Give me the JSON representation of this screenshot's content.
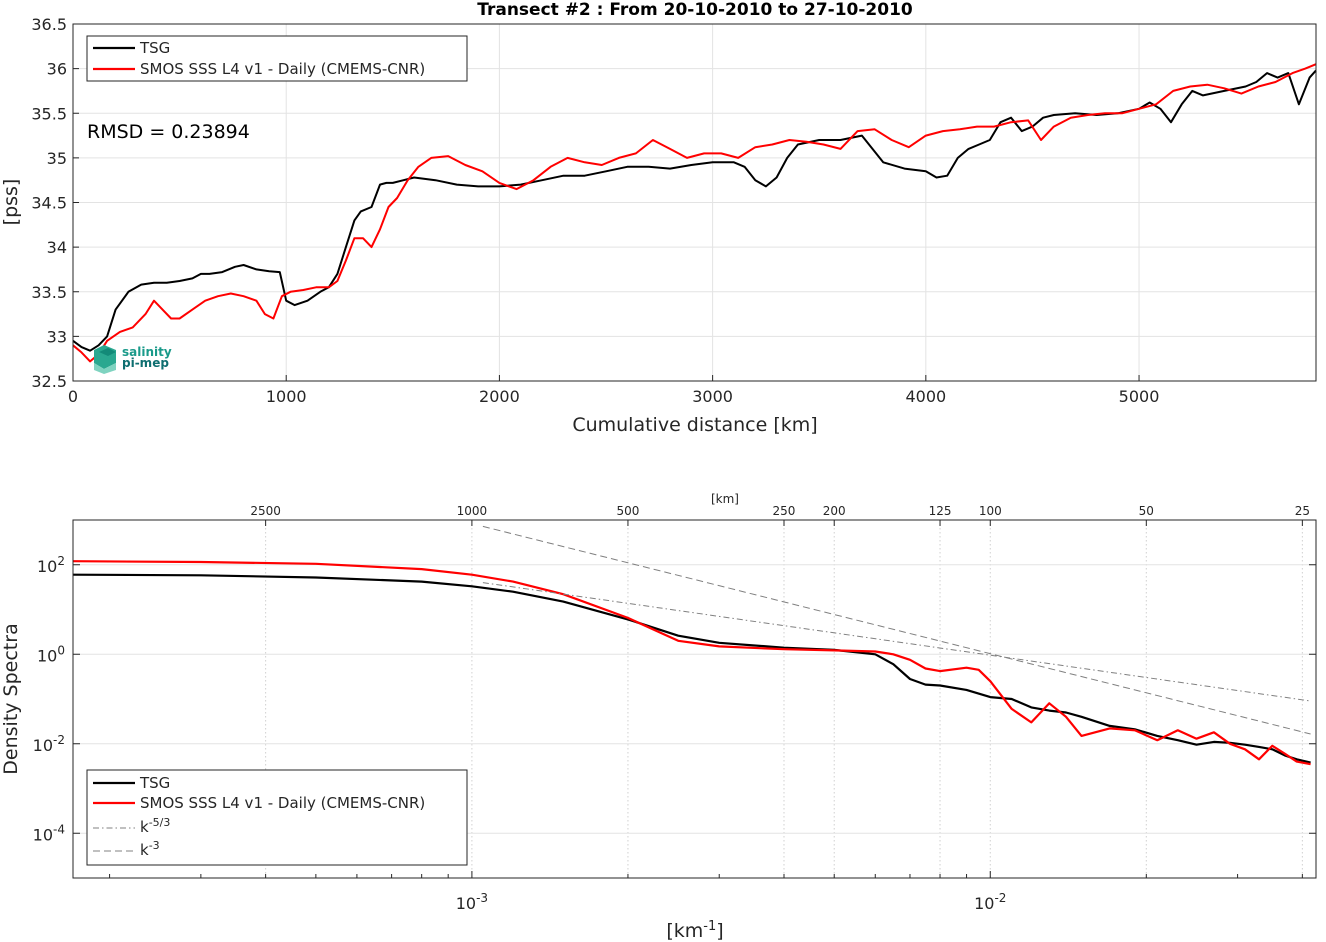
{
  "colors": {
    "tsg": "#000000",
    "smos": "#ff0000",
    "reference": "#808080",
    "logo": "#1a9a8a"
  },
  "annotation": {
    "rmsd": "RMSD = 0.23894"
  },
  "logo": {
    "line1": "salinity",
    "line2": "pi-mep"
  },
  "chart_data": [
    {
      "type": "line",
      "title": "Transect #2 : From 20-10-2010 to 27-10-2010",
      "xlabel": "Cumulative distance [km]",
      "ylabel": "[pss]",
      "xlim": [
        0,
        5830
      ],
      "ylim": [
        32.5,
        36.5
      ],
      "xticks": [
        0,
        1000,
        2000,
        3000,
        4000,
        5000
      ],
      "yticks": [
        32.5,
        33,
        33.5,
        34,
        34.5,
        35,
        35.5,
        36,
        36.5
      ],
      "grid": true,
      "legend_position": "top-left",
      "series": [
        {
          "name": "TSG",
          "x": [
            0,
            40,
            80,
            120,
            160,
            200,
            260,
            320,
            380,
            440,
            500,
            560,
            600,
            640,
            700,
            760,
            800,
            860,
            920,
            970,
            1000,
            1040,
            1100,
            1160,
            1200,
            1240,
            1280,
            1320,
            1350,
            1400,
            1440,
            1470,
            1500,
            1550,
            1600,
            1700,
            1800,
            1900,
            2000,
            2100,
            2200,
            2300,
            2400,
            2500,
            2600,
            2700,
            2800,
            2900,
            3000,
            3100,
            3150,
            3200,
            3250,
            3300,
            3350,
            3400,
            3500,
            3600,
            3700,
            3800,
            3900,
            4000,
            4050,
            4100,
            4150,
            4200,
            4250,
            4300,
            4350,
            4400,
            4450,
            4500,
            4550,
            4600,
            4700,
            4800,
            4900,
            5000,
            5050,
            5100,
            5150,
            5200,
            5250,
            5300,
            5400,
            5500,
            5550,
            5600,
            5650,
            5700,
            5750,
            5800,
            5830
          ],
          "values": [
            32.95,
            32.88,
            32.84,
            32.9,
            33.0,
            33.3,
            33.5,
            33.58,
            33.6,
            33.6,
            33.62,
            33.65,
            33.7,
            33.7,
            33.72,
            33.78,
            33.8,
            33.75,
            33.73,
            33.72,
            33.4,
            33.35,
            33.4,
            33.5,
            33.55,
            33.7,
            34.0,
            34.3,
            34.4,
            34.45,
            34.7,
            34.72,
            34.72,
            34.75,
            34.78,
            34.75,
            34.7,
            34.68,
            34.68,
            34.7,
            34.75,
            34.8,
            34.8,
            34.85,
            34.9,
            34.9,
            34.88,
            34.92,
            34.95,
            34.95,
            34.9,
            34.75,
            34.68,
            34.78,
            35.0,
            35.15,
            35.2,
            35.2,
            35.25,
            34.95,
            34.88,
            34.85,
            34.78,
            34.8,
            35.0,
            35.1,
            35.15,
            35.2,
            35.4,
            35.45,
            35.3,
            35.35,
            35.45,
            35.48,
            35.5,
            35.48,
            35.5,
            35.55,
            35.62,
            35.55,
            35.4,
            35.6,
            35.75,
            35.7,
            35.75,
            35.8,
            35.85,
            35.95,
            35.9,
            35.95,
            35.6,
            35.9,
            35.98
          ]
        },
        {
          "name": "SMOS SSS L4 v1 - Daily (CMEMS-CNR)",
          "x": [
            0,
            40,
            80,
            120,
            160,
            220,
            280,
            340,
            380,
            420,
            460,
            500,
            560,
            620,
            680,
            740,
            800,
            860,
            900,
            940,
            980,
            1020,
            1080,
            1140,
            1200,
            1240,
            1280,
            1320,
            1360,
            1400,
            1440,
            1480,
            1520,
            1570,
            1620,
            1680,
            1760,
            1840,
            1920,
            2000,
            2080,
            2160,
            2240,
            2320,
            2400,
            2480,
            2560,
            2640,
            2720,
            2800,
            2880,
            2960,
            3040,
            3120,
            3200,
            3280,
            3360,
            3440,
            3520,
            3600,
            3680,
            3760,
            3840,
            3920,
            4000,
            4080,
            4160,
            4240,
            4320,
            4400,
            4480,
            4540,
            4600,
            4680,
            4760,
            4840,
            4920,
            5000,
            5080,
            5160,
            5240,
            5320,
            5400,
            5480,
            5560,
            5640,
            5720,
            5780,
            5830
          ],
          "values": [
            32.9,
            32.82,
            32.72,
            32.8,
            32.95,
            33.05,
            33.1,
            33.25,
            33.4,
            33.3,
            33.2,
            33.2,
            33.3,
            33.4,
            33.45,
            33.48,
            33.45,
            33.4,
            33.25,
            33.2,
            33.45,
            33.5,
            33.52,
            33.55,
            33.55,
            33.62,
            33.85,
            34.1,
            34.1,
            34.0,
            34.2,
            34.45,
            34.55,
            34.75,
            34.9,
            35.0,
            35.02,
            34.92,
            34.85,
            34.72,
            34.65,
            34.75,
            34.9,
            35.0,
            34.95,
            34.92,
            35.0,
            35.05,
            35.2,
            35.1,
            35.0,
            35.05,
            35.05,
            35.0,
            35.12,
            35.15,
            35.2,
            35.18,
            35.15,
            35.1,
            35.3,
            35.32,
            35.2,
            35.12,
            35.25,
            35.3,
            35.32,
            35.35,
            35.35,
            35.4,
            35.42,
            35.2,
            35.35,
            35.45,
            35.48,
            35.5,
            35.5,
            35.55,
            35.6,
            35.75,
            35.8,
            35.82,
            35.78,
            35.72,
            35.8,
            35.85,
            35.95,
            36.0,
            36.05
          ]
        }
      ]
    },
    {
      "type": "line",
      "title": "",
      "xlabel": "[km⁻¹]",
      "ylabel": "Density Spectra",
      "top_axis_label": "[km]",
      "x_scale": "log",
      "y_scale": "log",
      "xlim": [
        0.00017,
        0.0425
      ],
      "ylim": [
        1e-05,
        1000
      ],
      "bottom_ticks": [
        {
          "value": 0.001,
          "label": "10",
          "sup": "-3"
        },
        {
          "value": 0.01,
          "label": "10",
          "sup": "-2"
        }
      ],
      "left_ticks": [
        {
          "value": 100,
          "label": "10",
          "sup": "2"
        },
        {
          "value": 1,
          "label": "10",
          "sup": "0"
        },
        {
          "value": 0.01,
          "label": "10",
          "sup": "-2"
        },
        {
          "value": 0.0001,
          "label": "10",
          "sup": "-4"
        }
      ],
      "top_ticks_km": [
        "2500",
        "1000",
        "500",
        "250",
        "200",
        "125",
        "100",
        "50",
        "25"
      ],
      "grid": true,
      "legend_position": "bottom-left",
      "series": [
        {
          "name": "TSG",
          "x": [
            0.00017,
            0.0003,
            0.0005,
            0.0008,
            0.001,
            0.0012,
            0.0015,
            0.002,
            0.0025,
            0.003,
            0.004,
            0.005,
            0.006,
            0.0065,
            0.007,
            0.0075,
            0.008,
            0.009,
            0.01,
            0.011,
            0.012,
            0.013,
            0.014,
            0.015,
            0.017,
            0.019,
            0.021,
            0.023,
            0.025,
            0.027,
            0.029,
            0.031,
            0.033,
            0.035,
            0.037,
            0.039,
            0.0415
          ],
          "values": [
            60,
            58,
            52,
            42,
            33,
            25,
            15,
            6.0,
            2.6,
            1.8,
            1.4,
            1.25,
            1.0,
            0.6,
            0.28,
            0.21,
            0.2,
            0.16,
            0.11,
            0.1,
            0.065,
            0.055,
            0.05,
            0.04,
            0.025,
            0.021,
            0.015,
            0.012,
            0.0095,
            0.011,
            0.0105,
            0.0095,
            0.0085,
            0.0075,
            0.0055,
            0.0045,
            0.0038
          ]
        },
        {
          "name": "SMOS SSS L4 v1 - Daily (CMEMS-CNR)",
          "x": [
            0.00017,
            0.0003,
            0.0005,
            0.0008,
            0.001,
            0.0012,
            0.0015,
            0.002,
            0.0025,
            0.003,
            0.004,
            0.005,
            0.006,
            0.0065,
            0.007,
            0.0075,
            0.008,
            0.009,
            0.0095,
            0.01,
            0.011,
            0.012,
            0.013,
            0.014,
            0.015,
            0.017,
            0.019,
            0.021,
            0.023,
            0.025,
            0.027,
            0.029,
            0.031,
            0.033,
            0.035,
            0.037,
            0.039,
            0.0415
          ],
          "values": [
            120,
            115,
            105,
            80,
            60,
            42,
            22,
            6.5,
            2.0,
            1.5,
            1.3,
            1.22,
            1.15,
            1.0,
            0.75,
            0.48,
            0.42,
            0.5,
            0.45,
            0.25,
            0.06,
            0.03,
            0.08,
            0.04,
            0.015,
            0.022,
            0.02,
            0.012,
            0.02,
            0.013,
            0.018,
            0.01,
            0.0075,
            0.0045,
            0.009,
            0.006,
            0.004,
            0.0035
          ]
        },
        {
          "name": "k⁻⁵ᐟ³",
          "style": "dash-dot",
          "x": [
            0.00105,
            0.0415
          ],
          "values": [
            40,
            0.09
          ]
        },
        {
          "name": "k⁻³",
          "style": "dashed",
          "x": [
            0.00105,
            0.0415
          ],
          "values": [
            720,
            0.0165
          ]
        }
      ]
    }
  ]
}
